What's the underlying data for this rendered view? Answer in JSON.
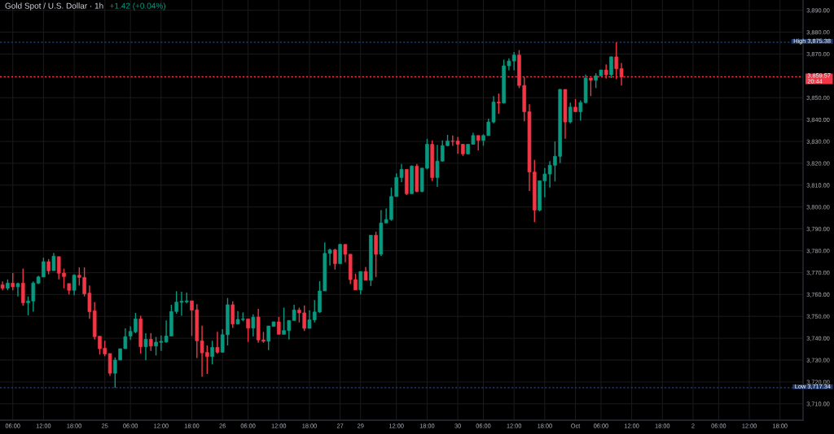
{
  "chart_data": {
    "type": "candlestick",
    "title": "Gold Spot / U.S. Dollar · 1h",
    "subtitle": "+1.42 (+0.04%)",
    "categories": [
      null,
      null,
      "06:00",
      null,
      null,
      null,
      null,
      null,
      "12:00",
      null,
      null,
      null,
      null,
      null,
      "18:00",
      null,
      null,
      null,
      null,
      null,
      "25",
      null,
      null,
      null,
      null,
      "06:00",
      null,
      null,
      null,
      null,
      null,
      "12:00",
      null,
      null,
      null,
      null,
      null,
      "18:00",
      null,
      null,
      null,
      null,
      null,
      "26",
      null,
      null,
      null,
      null,
      "06:00",
      null,
      null,
      null,
      null,
      null,
      "12:00",
      null,
      null,
      null,
      null,
      null,
      "18:00",
      null,
      null,
      null,
      null,
      null,
      "27",
      null,
      null,
      null,
      "29",
      null,
      null,
      null,
      null,
      null,
      null,
      "12:00",
      null,
      null,
      null,
      null,
      null,
      "18:00",
      null,
      null,
      null,
      null,
      null,
      "30",
      null,
      null,
      null,
      null,
      "06:00",
      null,
      null,
      null,
      null,
      null,
      "12:00",
      null,
      null,
      null,
      null,
      null,
      "18:00",
      null,
      null,
      null,
      null,
      null,
      "Oct",
      null,
      null,
      null,
      null,
      "06:00",
      null,
      null,
      null,
      null,
      null,
      "12:00",
      null,
      null,
      null,
      null,
      null,
      "18:00",
      null,
      null,
      null,
      null,
      null,
      "2",
      null,
      null,
      null,
      null,
      "06:00",
      null,
      null,
      null,
      null,
      null,
      "12:00",
      null,
      null,
      null,
      null,
      null,
      "18:00",
      null,
      null,
      null,
      null
    ],
    "ohlc": [
      [
        3764.4,
        3766.0,
        3761.9,
        3762.9
      ],
      [
        3762.9,
        3766.9,
        3761.9,
        3765.2
      ],
      [
        3765.2,
        3769.8,
        3761.9,
        3763.5
      ],
      [
        3763.5,
        3765.4,
        3759.1,
        3765.0
      ],
      [
        3765.2,
        3771.8,
        3754.9,
        3756.2
      ],
      [
        3756.2,
        3759.1,
        3750.5,
        3757.0
      ],
      [
        3757.0,
        3766.0,
        3752.1,
        3765.2
      ],
      [
        3765.2,
        3768.6,
        3764.8,
        3768.0
      ],
      [
        3768.0,
        3776.8,
        3768.0,
        3775.0
      ],
      [
        3775.0,
        3776.2,
        3769.2,
        3770.8
      ],
      [
        3770.9,
        3779.0,
        3770.8,
        3777.5
      ],
      [
        3777.3,
        3777.3,
        3766.9,
        3769.7
      ],
      [
        3769.8,
        3771.8,
        3762.8,
        3768.2
      ],
      [
        3765.0,
        3765.0,
        3760.0,
        3761.9
      ],
      [
        3761.9,
        3769.2,
        3759.7,
        3768.8
      ],
      [
        3768.8,
        3772.4,
        3764.1,
        3767.8
      ],
      [
        3767.8,
        3772.4,
        3759.1,
        3760.3
      ],
      [
        3760.6,
        3764.1,
        3748.9,
        3752.1
      ],
      [
        3752.5,
        3756.5,
        3739.4,
        3740.7
      ],
      [
        3740.9,
        3740.9,
        3732.5,
        3735.2
      ],
      [
        3735.4,
        3738.8,
        3731.8,
        3732.8
      ],
      [
        3733.0,
        3733.0,
        3722.8,
        3724.0
      ],
      [
        3724.0,
        3731.2,
        3717.34,
        3730.0
      ],
      [
        3730.0,
        3735.2,
        3730.0,
        3735.2
      ],
      [
        3735.2,
        3744.5,
        3735.2,
        3740.7
      ],
      [
        3741.0,
        3745.4,
        3739.2,
        3743.1
      ],
      [
        3742.9,
        3751.6,
        3742.3,
        3748.8
      ],
      [
        3748.8,
        3750.3,
        3733.0,
        3736.1
      ],
      [
        3736.1,
        3742.3,
        3729.9,
        3739.5
      ],
      [
        3739.5,
        3742.3,
        3734.2,
        3736.4
      ],
      [
        3736.4,
        3740.6,
        3732.1,
        3738.2
      ],
      [
        3738.1,
        3741.3,
        3734.2,
        3738.6
      ],
      [
        3738.3,
        3748.1,
        3737.9,
        3741.0
      ],
      [
        3741.0,
        3755.3,
        3740.8,
        3752.2
      ],
      [
        3752.2,
        3761.5,
        3751.2,
        3756.5
      ],
      [
        3756.4,
        3761.2,
        3750.3,
        3756.9
      ],
      [
        3756.6,
        3760.9,
        3755.9,
        3757.1
      ],
      [
        3757.1,
        3757.1,
        3741.0,
        3752.8
      ],
      [
        3753.0,
        3755.6,
        3730.9,
        3738.8
      ],
      [
        3738.8,
        3745.7,
        3722.4,
        3733.3
      ],
      [
        3733.5,
        3736.7,
        3723.7,
        3731.6
      ],
      [
        3731.6,
        3738.8,
        3728.0,
        3735.8
      ],
      [
        3735.8,
        3742.9,
        3733.0,
        3733.6
      ],
      [
        3733.6,
        3744.1,
        3733.4,
        3741.6
      ],
      [
        3741.6,
        3758.4,
        3736.7,
        3755.3
      ],
      [
        3755.3,
        3756.9,
        3744.7,
        3746.5
      ],
      [
        3746.5,
        3752.4,
        3746.5,
        3748.6
      ],
      [
        3748.5,
        3751.8,
        3747.8,
        3748.8
      ],
      [
        3748.8,
        3748.8,
        3738.3,
        3744.6
      ],
      [
        3744.6,
        3750.9,
        3740.8,
        3749.6
      ],
      [
        3749.7,
        3753.4,
        3737.9,
        3739.2
      ],
      [
        3739.2,
        3742.9,
        3737.9,
        3738.6
      ],
      [
        3738.6,
        3745.6,
        3734.6,
        3745.6
      ],
      [
        3745.4,
        3747.5,
        3745.4,
        3747.5
      ],
      [
        3747.5,
        3749.7,
        3741.8,
        3741.8
      ],
      [
        3741.8,
        3754.0,
        3741.7,
        3743.5
      ],
      [
        3743.5,
        3748.1,
        3739.4,
        3748.1
      ],
      [
        3748.1,
        3755.3,
        3748.1,
        3752.9
      ],
      [
        3752.9,
        3754.0,
        3747.2,
        3751.6
      ],
      [
        3751.6,
        3755.0,
        3743.3,
        3744.5
      ],
      [
        3744.5,
        3752.8,
        3744.5,
        3748.4
      ],
      [
        3748.4,
        3757.4,
        3747.2,
        3752.0
      ],
      [
        3752.0,
        3766.1,
        3751.6,
        3761.6
      ],
      [
        3761.6,
        3783.8,
        3761.6,
        3778.8
      ],
      [
        3778.8,
        3780.9,
        3773.2,
        3780.4
      ],
      [
        3780.4,
        3780.9,
        3771.4,
        3774.1
      ],
      [
        3774.1,
        3783.2,
        3774.1,
        3782.9
      ],
      [
        3782.9,
        3782.9,
        3774.7,
        3778.4
      ],
      [
        3778.4,
        3778.4,
        3764.8,
        3766.8
      ],
      [
        3766.8,
        3769.5,
        3762.1,
        3762.1
      ],
      [
        3762.1,
        3770.5,
        3760.0,
        3770.5
      ],
      [
        3770.5,
        3772.6,
        3766.5,
        3766.5
      ],
      [
        3766.5,
        3787.1,
        3763.9,
        3787.1
      ],
      [
        3787.1,
        3788.7,
        3768.0,
        3778.4
      ],
      [
        3778.4,
        3798.6,
        3777.6,
        3792.7
      ],
      [
        3792.7,
        3799.3,
        3792.7,
        3794.3
      ],
      [
        3794.3,
        3808.9,
        3793.7,
        3804.8
      ],
      [
        3804.8,
        3815.4,
        3804.8,
        3813.5
      ],
      [
        3813.5,
        3819.7,
        3811.3,
        3817.2
      ],
      [
        3817.2,
        3817.2,
        3805.5,
        3806.1
      ],
      [
        3806.1,
        3819.1,
        3806.1,
        3818.7
      ],
      [
        3818.7,
        3819.7,
        3806.8,
        3807.1
      ],
      [
        3807.1,
        3817.8,
        3806.8,
        3817.8
      ],
      [
        3817.8,
        3831.2,
        3817.2,
        3828.7
      ],
      [
        3828.7,
        3830.5,
        3811.9,
        3813.5
      ],
      [
        3813.5,
        3828.4,
        3809.2,
        3821.0
      ],
      [
        3821.0,
        3830.5,
        3820.8,
        3828.1
      ],
      [
        3828.1,
        3833.0,
        3827.8,
        3830.2
      ],
      [
        3830.2,
        3832.7,
        3828.0,
        3830.0
      ],
      [
        3830.2,
        3832.1,
        3824.3,
        3828.7
      ],
      [
        3828.7,
        3828.9,
        3823.4,
        3824.3
      ],
      [
        3824.3,
        3828.7,
        3824.0,
        3828.7
      ],
      [
        3828.7,
        3834.0,
        3828.7,
        3832.7
      ],
      [
        3832.7,
        3832.7,
        3825.9,
        3830.5
      ],
      [
        3830.5,
        3833.3,
        3828.0,
        3832.7
      ],
      [
        3832.7,
        3840.4,
        3832.7,
        3838.9
      ],
      [
        3838.9,
        3850.7,
        3838.3,
        3848.0
      ],
      [
        3848.0,
        3851.9,
        3842.6,
        3847.6
      ],
      [
        3847.6,
        3867.4,
        3847.4,
        3864.6
      ],
      [
        3864.6,
        3868.0,
        3862.5,
        3866.8
      ],
      [
        3866.8,
        3870.9,
        3862.5,
        3869.5
      ],
      [
        3869.5,
        3871.8,
        3854.4,
        3855.6
      ],
      [
        3855.6,
        3859.4,
        3839.2,
        3843.6
      ],
      [
        3843.6,
        3847.0,
        3807.3,
        3816.0
      ],
      [
        3816.0,
        3821.6,
        3793.1,
        3798.6
      ],
      [
        3798.6,
        3812.0,
        3798.0,
        3812.0
      ],
      [
        3812.0,
        3817.8,
        3804.5,
        3815.1
      ],
      [
        3815.1,
        3821.0,
        3808.9,
        3819.1
      ],
      [
        3819.1,
        3830.0,
        3811.7,
        3823.2
      ],
      [
        3823.2,
        3854.0,
        3820.1,
        3853.8
      ],
      [
        3853.8,
        3853.8,
        3831.2,
        3838.9
      ],
      [
        3838.9,
        3847.8,
        3838.3,
        3845.7
      ],
      [
        3845.7,
        3849.4,
        3843.6,
        3843.6
      ],
      [
        3843.6,
        3848.8,
        3839.5,
        3847.8
      ],
      [
        3847.8,
        3860.6,
        3847.4,
        3859.0
      ],
      [
        3859.0,
        3859.0,
        3850.7,
        3858.0
      ],
      [
        3858.0,
        3861.2,
        3854.4,
        3860.0
      ],
      [
        3860.0,
        3862.7,
        3860.0,
        3862.7
      ],
      [
        3862.7,
        3865.2,
        3858.7,
        3860.5
      ],
      [
        3860.5,
        3868.9,
        3859.0,
        3868.7
      ],
      [
        3868.7,
        3875.38,
        3858.5,
        3863.3
      ],
      [
        3863.3,
        3865.9,
        3855.6,
        3859.57
      ],
      null,
      null,
      null,
      null,
      null,
      null,
      null,
      null,
      null,
      null,
      null,
      null,
      null,
      null,
      null,
      null,
      null,
      null,
      null,
      null,
      null,
      null,
      null,
      null,
      null,
      null,
      null,
      null,
      null,
      null,
      null,
      null,
      null,
      null,
      null
    ],
    "colors": [
      "#f23645",
      "#089981",
      "#f23645",
      "#089981",
      "#f23645",
      "#089981",
      "#089981",
      "#089981",
      "#089981",
      "#f23645",
      "#089981",
      "#f23645",
      "#f23645",
      "#f23645",
      "#089981",
      "#f23645",
      "#f23645",
      "#f23645",
      "#f23645",
      "#f23645",
      "#f23645",
      "#f23645",
      "#089981",
      "#089981",
      "#089981",
      "#089981",
      "#089981",
      "#f23645",
      "#089981",
      "#f23645",
      "#089981",
      "#089981",
      "#089981",
      "#089981",
      "#089981",
      "#089981",
      "#089981",
      "#f23645",
      "#f23645",
      "#f23645",
      "#f23645",
      "#089981",
      "#f23645",
      "#089981",
      "#089981",
      "#f23645",
      "#089981",
      "#089981",
      "#f23645",
      "#089981",
      "#f23645",
      "#f23645",
      "#089981",
      "#089981",
      "#f23645",
      "#089981",
      "#089981",
      "#089981",
      "#f23645",
      "#f23645",
      "#089981",
      "#089981",
      "#089981",
      "#089981",
      "#089981",
      "#f23645",
      "#089981",
      "#f23645",
      "#f23645",
      "#f23645",
      "#089981",
      "#f23645",
      "#089981",
      "#f23645",
      "#089981",
      "#089981",
      "#089981",
      "#089981",
      "#089981",
      "#f23645",
      "#089981",
      "#f23645",
      "#089981",
      "#089981",
      "#f23645",
      "#089981",
      "#089981",
      "#089981",
      "#f23645",
      "#f23645",
      "#f23645",
      "#089981",
      "#089981",
      "#f23645",
      "#089981",
      "#089981",
      "#089981",
      "#f23645",
      "#089981",
      "#089981",
      "#089981",
      "#f23645",
      "#f23645",
      "#f23645",
      "#f23645",
      "#089981",
      "#089981",
      "#089981",
      "#089981",
      "#089981",
      "#f23645",
      "#089981",
      "#f23645",
      "#089981",
      "#089981",
      "#f23645",
      "#089981",
      "#089981",
      "#f23645",
      "#089981",
      "#f23645",
      "#f23645",
      null,
      null,
      null,
      null,
      null,
      null,
      null,
      null,
      null,
      null,
      null,
      null,
      null,
      null,
      null,
      null,
      null,
      null,
      null,
      null,
      null,
      null,
      null,
      null,
      null,
      null,
      null,
      null,
      null,
      null,
      null,
      null,
      null,
      null,
      null
    ],
    "ylim": [
      3702.5,
      3894.7
    ],
    "yticks": [
      {
        "value": 3710,
        "label": "3,710.00"
      },
      {
        "value": 3720,
        "label": "3,720.00"
      },
      {
        "value": 3730,
        "label": "3,730.00"
      },
      {
        "value": 3740,
        "label": "3,740.00"
      },
      {
        "value": 3750,
        "label": "3,750.00"
      },
      {
        "value": 3760,
        "label": "3,760.00"
      },
      {
        "value": 3770,
        "label": "3,770.00"
      },
      {
        "value": 3780,
        "label": "3,780.00"
      },
      {
        "value": 3790,
        "label": "3,790.00"
      },
      {
        "value": 3800,
        "label": "3,800.00"
      },
      {
        "value": 3810,
        "label": "3,810.00"
      },
      {
        "value": 3820,
        "label": "3,820.00"
      },
      {
        "value": 3830,
        "label": "3,830.00"
      },
      {
        "value": 3840,
        "label": "3,840.00"
      },
      {
        "value": 3850,
        "label": "3,850.00"
      },
      {
        "value": 3870,
        "label": "3,870.00"
      },
      {
        "value": 3880,
        "label": "3,880.00"
      },
      {
        "value": 3890,
        "label": "3,890.00"
      }
    ],
    "grid": true,
    "ref_lines": [
      {
        "axis": "y",
        "value": 3875.38,
        "label": "High 3,875.38",
        "color": "#1e3a6e",
        "line_style": "dotted"
      },
      {
        "axis": "y",
        "value": 3717.34,
        "label": "Low 3,717.34",
        "color": "#1e3a6e",
        "line_style": "dotted"
      },
      {
        "axis": "y",
        "value": 3859.57,
        "label": "3,859.57\n20:44",
        "color": "#f23645",
        "line_style": "dotted"
      }
    ]
  }
}
